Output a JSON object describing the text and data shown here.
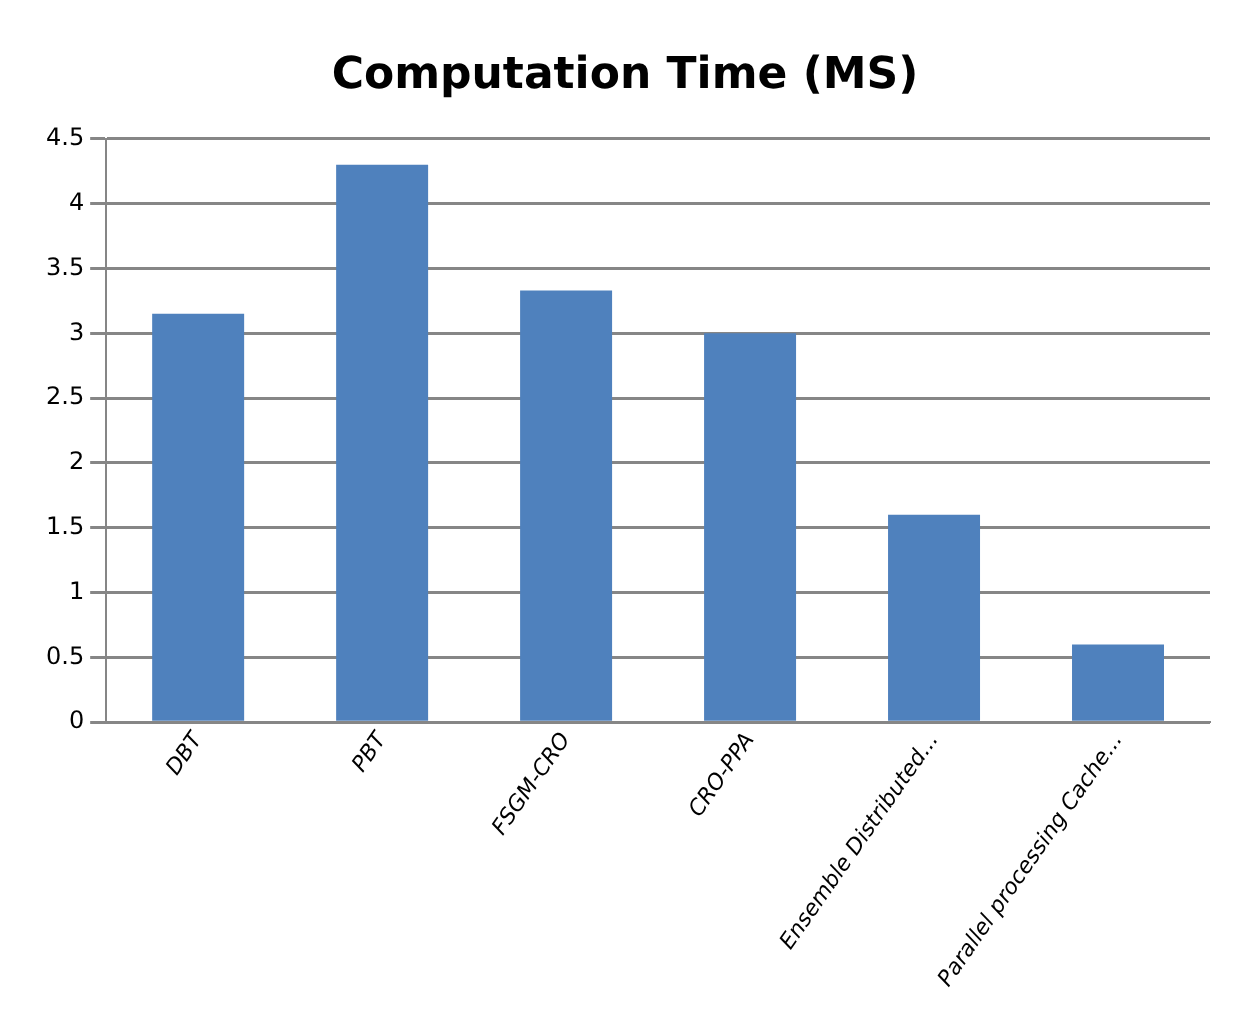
{
  "chart_data": {
    "type": "bar",
    "title": "Computation Time (MS)",
    "categories": [
      "DBT",
      "PBT",
      "FSGM-CRO",
      "CRO-PPA",
      "Ensemble Distributed...",
      "Parallel processing Cache..."
    ],
    "values": [
      3.15,
      4.3,
      3.33,
      3.0,
      1.6,
      0.6
    ],
    "color": "#4f81bd",
    "ylim": [
      0,
      4.5
    ],
    "yticks": [
      0,
      0.5,
      1,
      1.5,
      2,
      2.5,
      3,
      3.5,
      4,
      4.5
    ],
    "grid": "y"
  }
}
